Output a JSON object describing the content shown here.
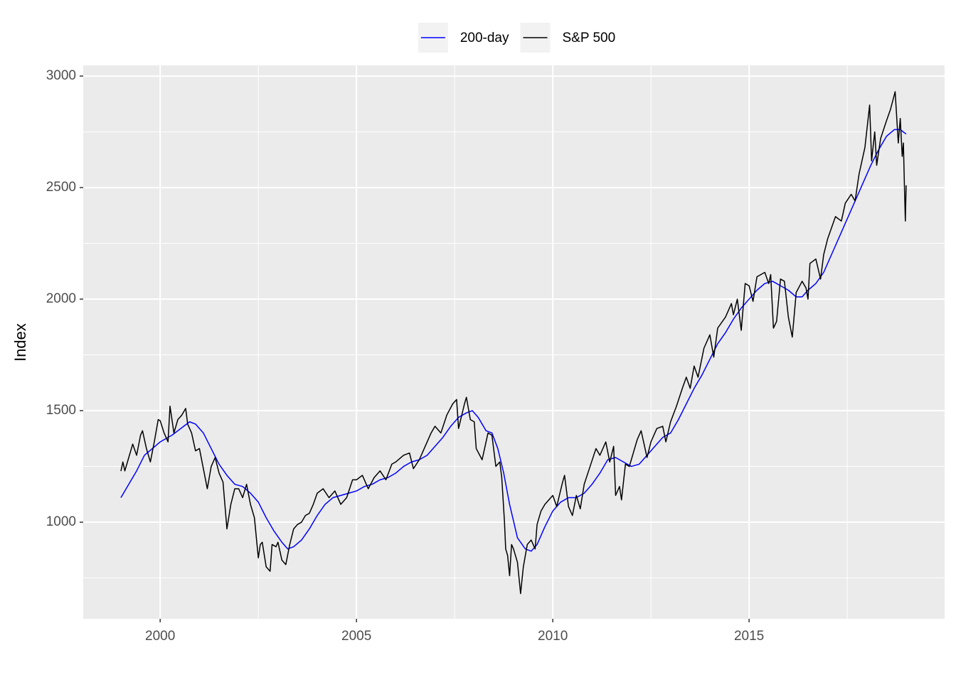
{
  "chart_data": {
    "type": "line",
    "y_label": "Index",
    "legend": "top",
    "grid": true,
    "xlim": [
      1998.04,
      2019.98
    ],
    "xticks": [
      2000,
      2005,
      2010,
      2015
    ],
    "xminor": [
      2002.5,
      2007.5,
      2012.5,
      2017.5
    ],
    "ylim": [
      567,
      3048
    ],
    "yticks": [
      1000,
      1500,
      2000,
      2500,
      3000
    ],
    "yminor": [
      750,
      1250,
      1750,
      2250,
      2750
    ],
    "series": [
      {
        "name": "200-day",
        "color": "#0000ff",
        "x": [
          1999.0,
          1999.2,
          1999.4,
          1999.6,
          1999.8,
          2000.0,
          2000.3,
          2000.6,
          2000.75,
          2000.9,
          2001.1,
          2001.3,
          2001.5,
          2001.7,
          2001.9,
          2002.1,
          2002.3,
          2002.5,
          2002.7,
          2002.9,
          2003.1,
          2003.25,
          2003.4,
          2003.6,
          2003.8,
          2004.0,
          2004.2,
          2004.4,
          2004.6,
          2004.8,
          2005.0,
          2005.2,
          2005.4,
          2005.6,
          2005.8,
          2006.0,
          2006.2,
          2006.4,
          2006.6,
          2006.8,
          2007.0,
          2007.2,
          2007.4,
          2007.6,
          2007.8,
          2007.95,
          2008.1,
          2008.3,
          2008.45,
          2008.6,
          2008.75,
          2008.9,
          2009.1,
          2009.3,
          2009.45,
          2009.6,
          2009.8,
          2010.0,
          2010.2,
          2010.4,
          2010.6,
          2010.8,
          2011.0,
          2011.2,
          2011.4,
          2011.6,
          2011.8,
          2012.0,
          2012.2,
          2012.4,
          2012.6,
          2012.8,
          2013.0,
          2013.2,
          2013.4,
          2013.6,
          2013.8,
          2014.0,
          2014.2,
          2014.4,
          2014.6,
          2014.8,
          2015.0,
          2015.2,
          2015.4,
          2015.6,
          2015.8,
          2016.0,
          2016.2,
          2016.35,
          2016.5,
          2016.7,
          2016.9,
          2017.1,
          2017.3,
          2017.5,
          2017.7,
          2017.9,
          2018.1,
          2018.3,
          2018.5,
          2018.7,
          2018.85,
          2019.0
        ],
        "values": [
          1110,
          1170,
          1230,
          1300,
          1330,
          1360,
          1390,
          1430,
          1450,
          1440,
          1400,
          1330,
          1260,
          1210,
          1170,
          1160,
          1130,
          1090,
          1020,
          960,
          910,
          880,
          890,
          920,
          970,
          1030,
          1080,
          1110,
          1120,
          1130,
          1140,
          1160,
          1170,
          1190,
          1200,
          1220,
          1250,
          1270,
          1280,
          1300,
          1340,
          1380,
          1430,
          1470,
          1490,
          1500,
          1470,
          1410,
          1400,
          1330,
          1220,
          1080,
          930,
          880,
          870,
          900,
          980,
          1050,
          1090,
          1110,
          1110,
          1130,
          1170,
          1220,
          1280,
          1290,
          1270,
          1250,
          1260,
          1300,
          1340,
          1380,
          1400,
          1460,
          1530,
          1600,
          1660,
          1730,
          1800,
          1850,
          1910,
          1960,
          2000,
          2040,
          2070,
          2080,
          2060,
          2040,
          2010,
          2010,
          2040,
          2070,
          2120,
          2200,
          2280,
          2360,
          2440,
          2520,
          2600,
          2670,
          2730,
          2760,
          2760,
          2740
        ]
      },
      {
        "name": "S&P 500",
        "color": "#000000",
        "x": [
          1999.0,
          1999.05,
          1999.1,
          1999.2,
          1999.3,
          1999.4,
          1999.5,
          1999.55,
          1999.65,
          1999.75,
          1999.85,
          1999.95,
          2000.0,
          2000.1,
          2000.2,
          2000.25,
          2000.35,
          2000.45,
          2000.55,
          2000.65,
          2000.7,
          2000.8,
          2000.9,
          2001.0,
          2001.1,
          2001.2,
          2001.3,
          2001.4,
          2001.5,
          2001.6,
          2001.7,
          2001.8,
          2001.9,
          2002.0,
          2002.1,
          2002.2,
          2002.3,
          2002.4,
          2002.5,
          2002.55,
          2002.6,
          2002.7,
          2002.8,
          2002.85,
          2002.95,
          2003.0,
          2003.1,
          2003.2,
          2003.3,
          2003.4,
          2003.5,
          2003.6,
          2003.7,
          2003.8,
          2003.9,
          2004.0,
          2004.15,
          2004.3,
          2004.45,
          2004.6,
          2004.75,
          2004.9,
          2005.0,
          2005.15,
          2005.3,
          2005.45,
          2005.6,
          2005.75,
          2005.9,
          2006.0,
          2006.2,
          2006.35,
          2006.45,
          2006.6,
          2006.75,
          2006.9,
          2007.0,
          2007.15,
          2007.3,
          2007.45,
          2007.55,
          2007.6,
          2007.75,
          2007.8,
          2007.9,
          2008.0,
          2008.05,
          2008.2,
          2008.35,
          2008.45,
          2008.55,
          2008.65,
          2008.7,
          2008.77,
          2008.8,
          2008.85,
          2008.9,
          2008.95,
          2009.0,
          2009.1,
          2009.18,
          2009.25,
          2009.35,
          2009.45,
          2009.55,
          2009.6,
          2009.7,
          2009.8,
          2009.9,
          2010.0,
          2010.1,
          2010.25,
          2010.3,
          2010.4,
          2010.5,
          2010.6,
          2010.7,
          2010.8,
          2010.95,
          2011.1,
          2011.2,
          2011.35,
          2011.45,
          2011.55,
          2011.6,
          2011.7,
          2011.75,
          2011.85,
          2011.95,
          2012.0,
          2012.15,
          2012.25,
          2012.4,
          2012.5,
          2012.65,
          2012.8,
          2012.88,
          2013.0,
          2013.15,
          2013.3,
          2013.4,
          2013.5,
          2013.6,
          2013.7,
          2013.85,
          2014.0,
          2014.1,
          2014.2,
          2014.4,
          2014.55,
          2014.6,
          2014.7,
          2014.8,
          2014.9,
          2015.0,
          2015.1,
          2015.2,
          2015.4,
          2015.5,
          2015.55,
          2015.62,
          2015.7,
          2015.8,
          2015.9,
          2016.0,
          2016.1,
          2016.2,
          2016.35,
          2016.45,
          2016.5,
          2016.55,
          2016.7,
          2016.82,
          2016.9,
          2017.0,
          2017.2,
          2017.35,
          2017.45,
          2017.6,
          2017.7,
          2017.8,
          2017.95,
          2018.07,
          2018.12,
          2018.2,
          2018.25,
          2018.35,
          2018.5,
          2018.6,
          2018.72,
          2018.8,
          2018.85,
          2018.9,
          2018.93,
          2018.96,
          2018.98,
          2019.0
        ],
        "values": [
          1229,
          1270,
          1230,
          1290,
          1350,
          1300,
          1390,
          1410,
          1330,
          1270,
          1360,
          1460,
          1455,
          1400,
          1360,
          1520,
          1400,
          1460,
          1480,
          1510,
          1440,
          1400,
          1320,
          1330,
          1240,
          1150,
          1250,
          1290,
          1220,
          1180,
          970,
          1080,
          1150,
          1150,
          1110,
          1170,
          1080,
          1020,
          840,
          900,
          910,
          800,
          780,
          900,
          890,
          910,
          830,
          810,
          900,
          970,
          990,
          1000,
          1030,
          1040,
          1080,
          1130,
          1150,
          1110,
          1140,
          1080,
          1110,
          1190,
          1190,
          1210,
          1150,
          1200,
          1230,
          1190,
          1260,
          1270,
          1300,
          1310,
          1240,
          1280,
          1340,
          1400,
          1430,
          1400,
          1480,
          1530,
          1550,
          1420,
          1530,
          1560,
          1460,
          1450,
          1330,
          1280,
          1400,
          1390,
          1250,
          1270,
          1200,
          1000,
          880,
          850,
          760,
          900,
          880,
          820,
          680,
          800,
          900,
          920,
          880,
          990,
          1050,
          1080,
          1100,
          1120,
          1070,
          1180,
          1210,
          1070,
          1030,
          1120,
          1060,
          1170,
          1250,
          1330,
          1300,
          1360,
          1270,
          1340,
          1120,
          1160,
          1100,
          1260,
          1250,
          1280,
          1370,
          1410,
          1290,
          1360,
          1420,
          1430,
          1360,
          1450,
          1520,
          1600,
          1650,
          1600,
          1700,
          1650,
          1780,
          1840,
          1740,
          1870,
          1920,
          1980,
          1930,
          2000,
          1860,
          2070,
          2060,
          1990,
          2100,
          2120,
          2070,
          2110,
          1870,
          1900,
          2090,
          2080,
          1920,
          1830,
          2030,
          2080,
          2050,
          2000,
          2160,
          2180,
          2090,
          2200,
          2270,
          2370,
          2350,
          2430,
          2470,
          2440,
          2560,
          2680,
          2870,
          2620,
          2750,
          2600,
          2720,
          2800,
          2850,
          2930,
          2700,
          2810,
          2640,
          2700,
          2480,
          2350,
          2510
        ]
      }
    ]
  }
}
